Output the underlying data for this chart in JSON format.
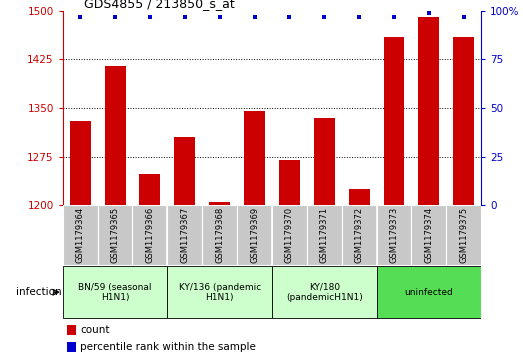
{
  "title": "GDS4855 / 213850_s_at",
  "samples": [
    "GSM1179364",
    "GSM1179365",
    "GSM1179366",
    "GSM1179367",
    "GSM1179368",
    "GSM1179369",
    "GSM1179370",
    "GSM1179371",
    "GSM1179372",
    "GSM1179373",
    "GSM1179374",
    "GSM1179375"
  ],
  "counts": [
    1330,
    1415,
    1248,
    1305,
    1205,
    1345,
    1270,
    1335,
    1225,
    1460,
    1490,
    1460
  ],
  "percentiles": [
    97,
    97,
    97,
    97,
    97,
    97,
    97,
    97,
    97,
    97,
    99,
    97
  ],
  "ylim_left": [
    1200,
    1500
  ],
  "ylim_right": [
    0,
    100
  ],
  "yticks_left": [
    1200,
    1275,
    1350,
    1425,
    1500
  ],
  "yticks_right": [
    0,
    25,
    50,
    75,
    100
  ],
  "bar_color": "#cc0000",
  "dot_color": "#0000cc",
  "bar_width": 0.6,
  "groups": [
    {
      "label": "BN/59 (seasonal\nH1N1)",
      "start": 0,
      "end": 3,
      "color": "#ccffcc"
    },
    {
      "label": "KY/136 (pandemic\nH1N1)",
      "start": 3,
      "end": 6,
      "color": "#ccffcc"
    },
    {
      "label": "KY/180\n(pandemicH1N1)",
      "start": 6,
      "end": 9,
      "color": "#ccffcc"
    },
    {
      "label": "uninfected",
      "start": 9,
      "end": 12,
      "color": "#55dd55"
    }
  ],
  "infection_label": "infection",
  "legend_count_label": "count",
  "legend_percentile_label": "percentile rank within the sample",
  "tick_color_left": "#cc0000",
  "tick_color_right": "#0000cc",
  "background_color": "#ffffff",
  "sample_box_color": "#c8c8c8",
  "right_tick_labels": [
    "0",
    "25",
    "50",
    "75",
    "100%"
  ]
}
